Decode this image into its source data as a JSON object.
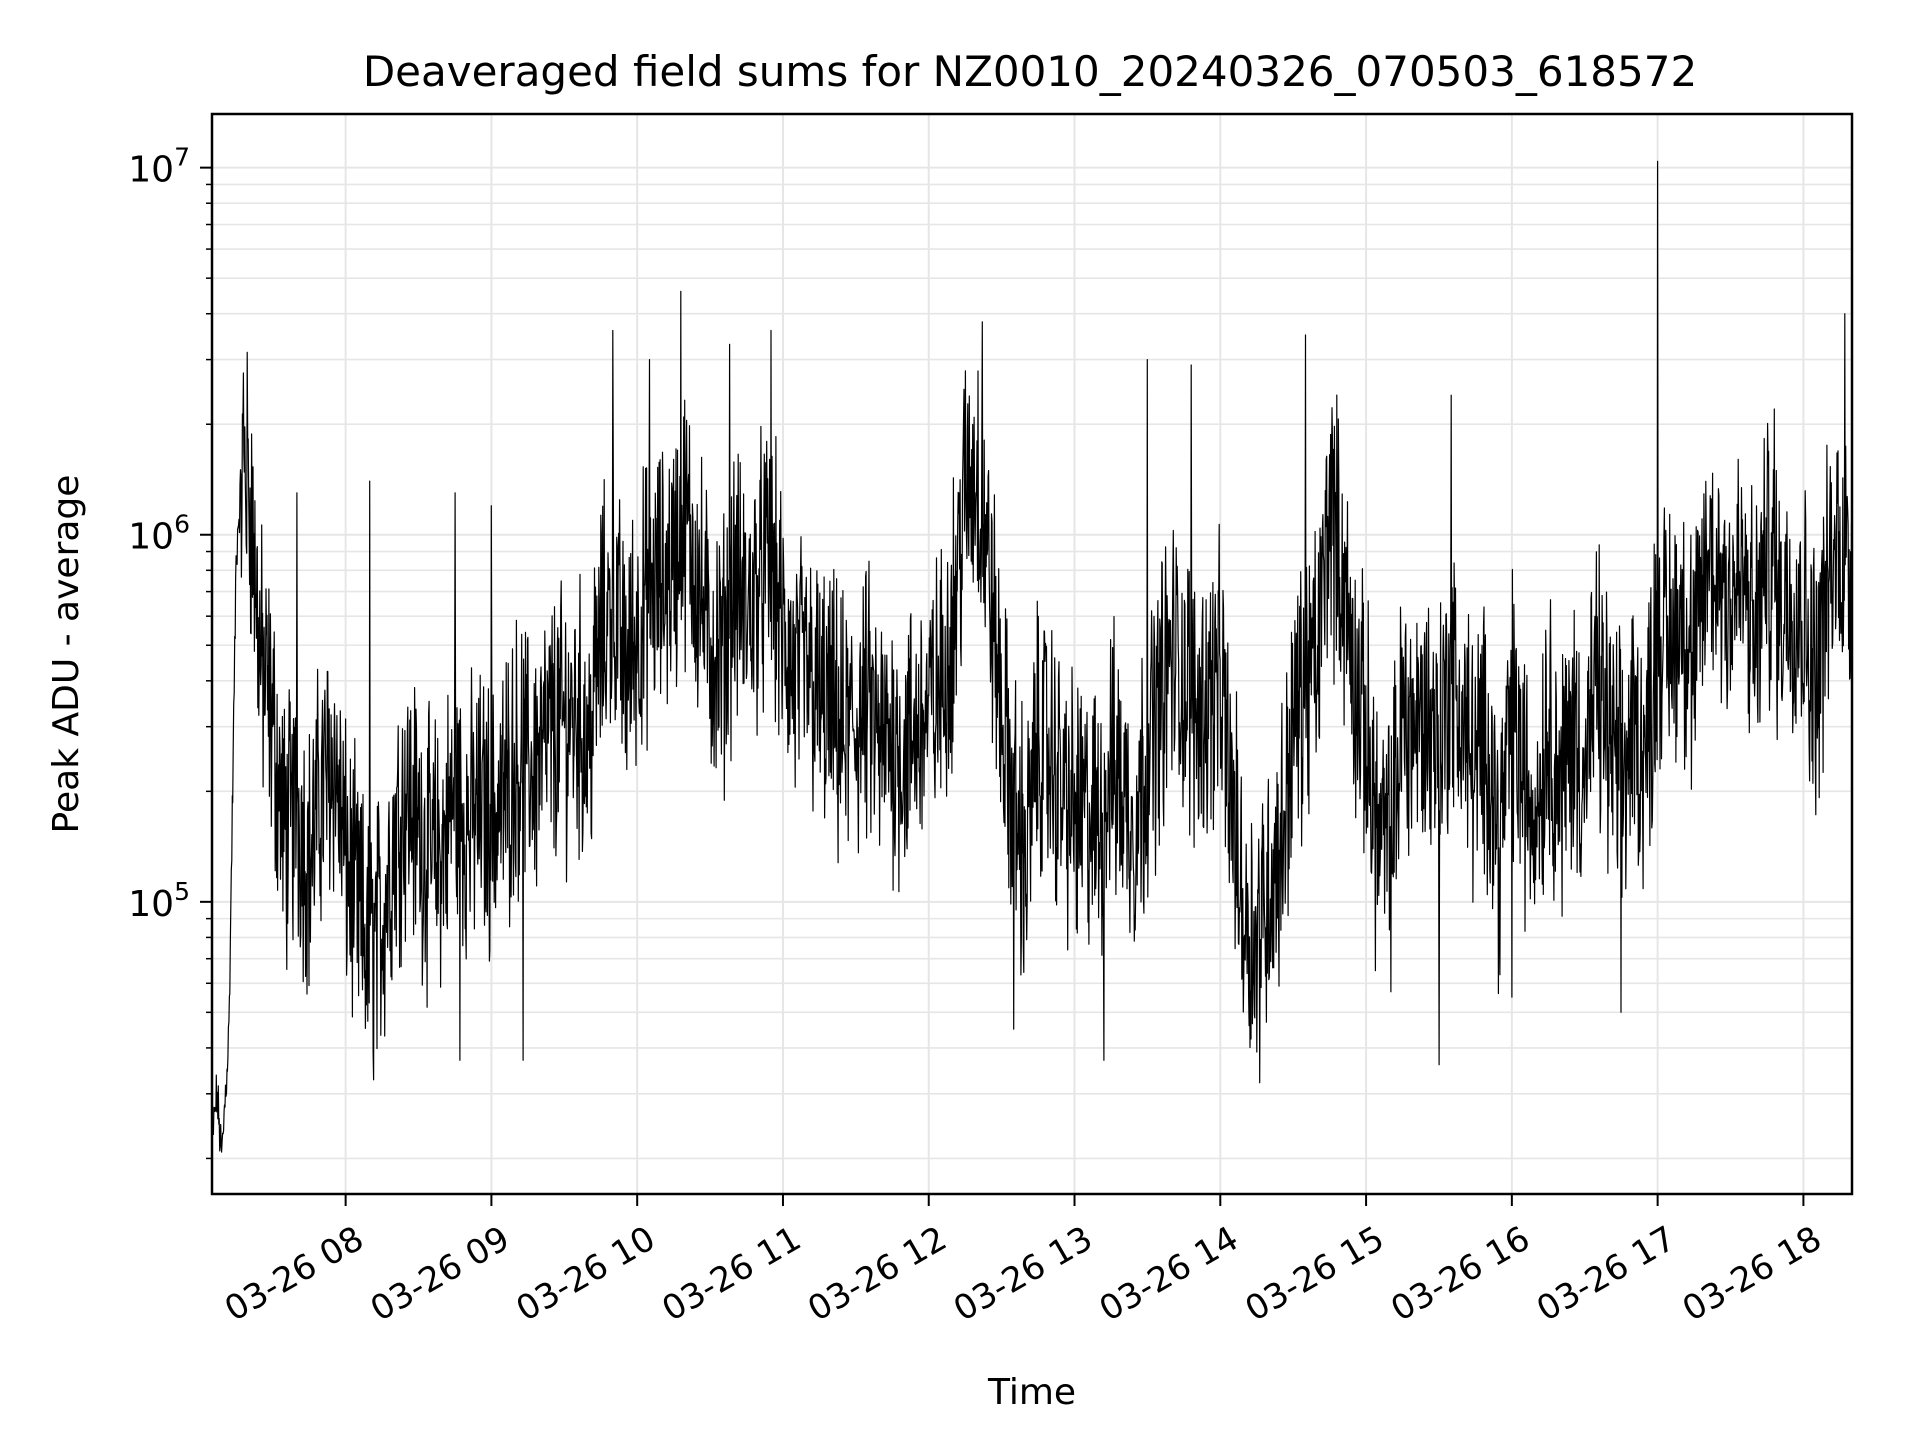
{
  "chart_data": {
    "type": "line",
    "title": "Deaveraged field sums for NZ0010_20240326_070503_618572",
    "xlabel": "Time",
    "ylabel": "Peak ADU - average",
    "y_scale": "log",
    "ylim": [
      16000,
      14000000
    ],
    "xlim": [
      "03-26 07:05",
      "03-26 18:20"
    ],
    "grid": true,
    "line_color": "#000000",
    "grid_color": "#e6e6e6",
    "x_ticks": [
      "03-26 08",
      "03-26 09",
      "03-26 10",
      "03-26 11",
      "03-26 12",
      "03-26 13",
      "03-26 14",
      "03-26 15",
      "03-26 16",
      "03-26 17",
      "03-26 18"
    ],
    "y_ticks": [
      {
        "value": 100000,
        "base": "10",
        "exp": "5"
      },
      {
        "value": 1000000,
        "base": "10",
        "exp": "6"
      },
      {
        "value": 10000000,
        "base": "10",
        "exp": "7"
      }
    ],
    "series": [
      {
        "x": [
          "03-26 07:05",
          "03-26 07:07",
          "03-26 07:09",
          "03-26 07:12",
          "03-26 07:15",
          "03-26 07:18",
          "03-26 07:21",
          "03-26 07:25",
          "03-26 07:30",
          "03-26 07:35",
          "03-26 07:40",
          "03-26 07:45",
          "03-26 07:50",
          "03-26 07:55",
          "03-26 08:00",
          "03-26 08:05",
          "03-26 08:10",
          "03-26 08:15",
          "03-26 08:20",
          "03-26 08:25",
          "03-26 08:30",
          "03-26 08:35",
          "03-26 08:40",
          "03-26 08:45",
          "03-26 08:50",
          "03-26 08:55",
          "03-26 09:00",
          "03-26 09:05",
          "03-26 09:10",
          "03-26 09:15",
          "03-26 09:20",
          "03-26 09:25",
          "03-26 09:30",
          "03-26 09:35",
          "03-26 09:40",
          "03-26 09:45",
          "03-26 09:50",
          "03-26 09:55",
          "03-26 10:00",
          "03-26 10:05",
          "03-26 10:10",
          "03-26 10:15",
          "03-26 10:20",
          "03-26 10:25",
          "03-26 10:30",
          "03-26 10:35",
          "03-26 10:40",
          "03-26 10:45",
          "03-26 10:50",
          "03-26 10:55",
          "03-26 11:00",
          "03-26 11:05",
          "03-26 11:10",
          "03-26 11:15",
          "03-26 11:20",
          "03-26 11:25",
          "03-26 11:30",
          "03-26 11:35",
          "03-26 11:40",
          "03-26 11:45",
          "03-26 11:50",
          "03-26 11:55",
          "03-26 12:00",
          "03-26 12:05",
          "03-26 12:10",
          "03-26 12:15",
          "03-26 12:20",
          "03-26 12:25",
          "03-26 12:30",
          "03-26 12:35",
          "03-26 12:40",
          "03-26 12:45",
          "03-26 12:50",
          "03-26 12:55",
          "03-26 13:00",
          "03-26 13:05",
          "03-26 13:10",
          "03-26 13:15",
          "03-26 13:20",
          "03-26 13:25",
          "03-26 13:30",
          "03-26 13:35",
          "03-26 13:40",
          "03-26 13:45",
          "03-26 13:50",
          "03-26 13:55",
          "03-26 14:00",
          "03-26 14:05",
          "03-26 14:10",
          "03-26 14:15",
          "03-26 14:20",
          "03-26 14:25",
          "03-26 14:30",
          "03-26 14:35",
          "03-26 14:40",
          "03-26 14:45",
          "03-26 14:50",
          "03-26 14:55",
          "03-26 15:00",
          "03-26 15:05",
          "03-26 15:10",
          "03-26 15:15",
          "03-26 15:20",
          "03-26 15:25",
          "03-26 15:30",
          "03-26 15:35",
          "03-26 15:40",
          "03-26 15:45",
          "03-26 15:50",
          "03-26 15:55",
          "03-26 16:00",
          "03-26 16:05",
          "03-26 16:10",
          "03-26 16:15",
          "03-26 16:20",
          "03-26 16:25",
          "03-26 16:30",
          "03-26 16:35",
          "03-26 16:40",
          "03-26 16:45",
          "03-26 16:50",
          "03-26 16:55",
          "03-26 17:00",
          "03-26 17:05",
          "03-26 17:10",
          "03-26 17:15",
          "03-26 17:20",
          "03-26 17:25",
          "03-26 17:30",
          "03-26 17:35",
          "03-26 17:40",
          "03-26 17:45",
          "03-26 17:50",
          "03-26 17:55",
          "03-26 18:00",
          "03-26 18:05",
          "03-26 18:10",
          "03-26 18:15",
          "03-26 18:20"
        ],
        "y": [
          22000,
          30000,
          20000,
          45000,
          900000,
          1700000,
          1200000,
          450000,
          300000,
          150000,
          180000,
          130000,
          200000,
          250000,
          130000,
          95000,
          70000,
          90000,
          150000,
          200000,
          160000,
          130000,
          140000,
          200000,
          160000,
          180000,
          170000,
          190000,
          250000,
          230000,
          250000,
          290000,
          310000,
          330000,
          270000,
          520000,
          650000,
          430000,
          550000,
          700000,
          720000,
          850000,
          1100000,
          750000,
          500000,
          450000,
          750000,
          600000,
          750000,
          850000,
          520000,
          400000,
          430000,
          350000,
          320000,
          280000,
          300000,
          340000,
          260000,
          280000,
          250000,
          300000,
          330000,
          380000,
          600000,
          1300000,
          1500000,
          750000,
          320000,
          180000,
          130000,
          280000,
          250000,
          200000,
          170000,
          170000,
          160000,
          240000,
          200000,
          160000,
          250000,
          350000,
          480000,
          400000,
          330000,
          360000,
          400000,
          180000,
          90000,
          80000,
          110000,
          140000,
          300000,
          400000,
          450000,
          1250000,
          800000,
          420000,
          280000,
          150000,
          140000,
          330000,
          300000,
          320000,
          280000,
          420000,
          300000,
          230000,
          280000,
          140000,
          350000,
          200000,
          180000,
          320000,
          200000,
          300000,
          220000,
          400000,
          280000,
          200000,
          300000,
          250000,
          550000,
          500000,
          650000,
          400000,
          850000,
          800000,
          700000,
          750000,
          500000,
          900000,
          650000,
          700000,
          600000,
          400000,
          700000,
          1000000,
          800000
        ]
      }
    ],
    "spikes": [
      {
        "x": "03-26 07:40",
        "y": 1300000
      },
      {
        "x": "03-26 08:10",
        "y": 1400000
      },
      {
        "x": "03-26 08:45",
        "y": 1300000
      },
      {
        "x": "03-26 09:00",
        "y": 1200000
      },
      {
        "x": "03-26 09:50",
        "y": 3600000
      },
      {
        "x": "03-26 10:05",
        "y": 3000000
      },
      {
        "x": "03-26 10:18",
        "y": 4600000
      },
      {
        "x": "03-26 10:38",
        "y": 3300000
      },
      {
        "x": "03-26 10:55",
        "y": 3600000
      },
      {
        "x": "03-26 12:22",
        "y": 3800000
      },
      {
        "x": "03-26 13:30",
        "y": 3000000
      },
      {
        "x": "03-26 13:48",
        "y": 2900000
      },
      {
        "x": "03-26 14:35",
        "y": 3500000
      },
      {
        "x": "03-26 15:35",
        "y": 2400000
      },
      {
        "x": "03-26 16:00",
        "y": 2800000
      },
      {
        "x": "03-26 17:00",
        "y": 10400000
      },
      {
        "x": "03-26 17:48",
        "y": 2200000
      },
      {
        "x": "03-26 18:17",
        "y": 4000000
      }
    ],
    "dips": [
      {
        "x": "03-26 08:47",
        "y": 37000
      },
      {
        "x": "03-26 09:13",
        "y": 37000
      },
      {
        "x": "03-26 12:35",
        "y": 45000
      },
      {
        "x": "03-26 13:12",
        "y": 37000
      },
      {
        "x": "03-26 14:15",
        "y": 39000
      },
      {
        "x": "03-26 15:30",
        "y": 36000
      },
      {
        "x": "03-26 16:00",
        "y": 55000
      },
      {
        "x": "03-26 16:45",
        "y": 50000
      }
    ]
  }
}
